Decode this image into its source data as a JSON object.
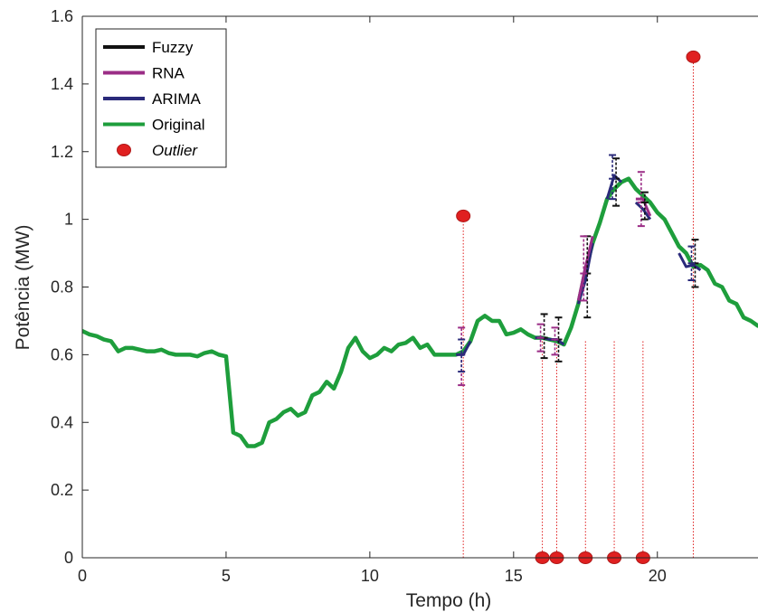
{
  "chart_data": {
    "type": "line",
    "xlabel": "Tempo (h)",
    "ylabel": "Potência (MW)",
    "xlim": [
      0,
      23.5
    ],
    "ylim": [
      0,
      1.6
    ],
    "xticks": [
      0,
      5,
      10,
      15,
      20
    ],
    "yticks": [
      0,
      0.2,
      0.4,
      0.6,
      0.8,
      1,
      1.2,
      1.4,
      1.6
    ],
    "ytick_labels": [
      "0",
      "0.2",
      "0.4",
      "0.6",
      "0.8",
      "1",
      "1.2",
      "1.4",
      "1.6"
    ],
    "grid": false,
    "legend_position": "top-left",
    "legend": [
      {
        "label": "Fuzzy",
        "color": "#111111",
        "kind": "line"
      },
      {
        "label": "RNA",
        "color": "#9b2d86",
        "kind": "line"
      },
      {
        "label": "ARIMA",
        "color": "#2a2a7a",
        "kind": "line"
      },
      {
        "label": "Original",
        "color": "#1e9e3c",
        "kind": "line"
      },
      {
        "label": "Outlier",
        "color": "#e02020",
        "kind": "marker"
      }
    ],
    "series": [
      {
        "name": "Original",
        "color": "#1e9e3c",
        "x": [
          0,
          0.25,
          0.5,
          0.75,
          1,
          1.25,
          1.5,
          1.75,
          2,
          2.25,
          2.5,
          2.75,
          3,
          3.25,
          3.5,
          3.75,
          4,
          4.25,
          4.5,
          4.75,
          5,
          5.25,
          5.5,
          5.75,
          6,
          6.25,
          6.5,
          6.75,
          7,
          7.25,
          7.5,
          7.75,
          8,
          8.25,
          8.5,
          8.75,
          9,
          9.25,
          9.5,
          9.75,
          10,
          10.25,
          10.5,
          10.75,
          11,
          11.25,
          11.5,
          11.75,
          12,
          12.25,
          12.5,
          12.75,
          13,
          13.25,
          13.5,
          13.75,
          14,
          14.25,
          14.5,
          14.75,
          15,
          15.25,
          15.5,
          15.75,
          16,
          16.25,
          16.5,
          16.75,
          17,
          17.25,
          17.5,
          17.75,
          18,
          18.25,
          18.5,
          18.75,
          19,
          19.25,
          19.5,
          19.75,
          20,
          20.25,
          20.5,
          20.75,
          21,
          21.25,
          21.5,
          21.75,
          22,
          22.25,
          22.5,
          22.75,
          23,
          23.25,
          23.5
        ],
        "y": [
          0.67,
          0.66,
          0.655,
          0.645,
          0.64,
          0.61,
          0.62,
          0.62,
          0.615,
          0.61,
          0.61,
          0.615,
          0.605,
          0.6,
          0.6,
          0.6,
          0.595,
          0.605,
          0.61,
          0.6,
          0.595,
          0.37,
          0.36,
          0.33,
          0.33,
          0.34,
          0.4,
          0.41,
          0.43,
          0.44,
          0.42,
          0.43,
          0.48,
          0.49,
          0.52,
          0.5,
          0.55,
          0.62,
          0.65,
          0.61,
          0.59,
          0.6,
          0.62,
          0.61,
          0.63,
          0.635,
          0.65,
          0.62,
          0.63,
          0.6,
          0.6,
          0.6,
          0.6,
          0.61,
          0.64,
          0.7,
          0.715,
          0.7,
          0.7,
          0.66,
          0.665,
          0.675,
          0.66,
          0.65,
          0.65,
          0.645,
          0.64,
          0.63,
          0.68,
          0.75,
          0.85,
          0.93,
          0.99,
          1.06,
          1.09,
          1.11,
          1.12,
          1.09,
          1.07,
          1.05,
          1.02,
          1.0,
          0.96,
          0.92,
          0.9,
          0.86,
          0.865,
          0.85,
          0.81,
          0.8,
          0.76,
          0.75,
          0.71,
          0.7,
          0.685
        ]
      },
      {
        "name": "ARIMA",
        "color": "#2a2a7a",
        "segments": [
          [
            [
              13.0,
              0.6
            ],
            [
              13.25,
              0.6
            ],
            [
              13.5,
              0.64
            ]
          ],
          [
            [
              15.75,
              0.65
            ],
            [
              16.0,
              0.65
            ],
            [
              16.25,
              0.645
            ],
            [
              16.5,
              0.645
            ],
            [
              16.75,
              0.63
            ]
          ],
          [
            [
              17.25,
              0.75
            ],
            [
              17.5,
              0.82
            ],
            [
              17.75,
              0.93
            ]
          ],
          [
            [
              18.25,
              1.06
            ],
            [
              18.5,
              1.13
            ],
            [
              18.75,
              1.11
            ]
          ],
          [
            [
              19.25,
              1.05
            ],
            [
              19.5,
              1.03
            ],
            [
              19.75,
              1.0
            ]
          ],
          [
            [
              20.75,
              0.9
            ],
            [
              21.0,
              0.86
            ],
            [
              21.25,
              0.865
            ],
            [
              21.5,
              0.85
            ]
          ]
        ]
      },
      {
        "name": "RNA",
        "color": "#9b2d86",
        "segments": [
          [
            [
              17.25,
              0.76
            ],
            [
              17.5,
              0.86
            ],
            [
              17.75,
              0.95
            ]
          ],
          [
            [
              19.25,
              1.06
            ],
            [
              19.5,
              1.06
            ],
            [
              19.75,
              1.01
            ]
          ]
        ]
      }
    ],
    "error_bars": [
      {
        "x": 13.25,
        "center": 0.6,
        "lo": 0.51,
        "hi": 0.68,
        "color": "#9b2d86"
      },
      {
        "x": 13.25,
        "center": 0.6,
        "lo": 0.55,
        "hi": 0.645,
        "color": "#2a2a7a"
      },
      {
        "x": 16.0,
        "center": 0.65,
        "lo": 0.59,
        "hi": 0.72,
        "color": "#111111"
      },
      {
        "x": 16.0,
        "center": 0.65,
        "lo": 0.61,
        "hi": 0.69,
        "color": "#9b2d86"
      },
      {
        "x": 16.5,
        "center": 0.645,
        "lo": 0.58,
        "hi": 0.71,
        "color": "#111111"
      },
      {
        "x": 16.5,
        "center": 0.645,
        "lo": 0.6,
        "hi": 0.68,
        "color": "#9b2d86"
      },
      {
        "x": 17.5,
        "center": 0.84,
        "lo": 0.71,
        "hi": 0.95,
        "color": "#111111"
      },
      {
        "x": 17.5,
        "center": 0.84,
        "lo": 0.76,
        "hi": 0.95,
        "color": "#9b2d86"
      },
      {
        "x": 18.5,
        "center": 1.12,
        "lo": 1.04,
        "hi": 1.18,
        "color": "#111111"
      },
      {
        "x": 18.5,
        "center": 1.12,
        "lo": 1.06,
        "hi": 1.19,
        "color": "#2a2a7a"
      },
      {
        "x": 19.5,
        "center": 1.05,
        "lo": 0.98,
        "hi": 1.14,
        "color": "#9b2d86"
      },
      {
        "x": 19.5,
        "center": 1.05,
        "lo": 1.0,
        "hi": 1.08,
        "color": "#111111"
      },
      {
        "x": 21.25,
        "center": 0.87,
        "lo": 0.8,
        "hi": 0.94,
        "color": "#111111"
      },
      {
        "x": 21.25,
        "center": 0.87,
        "lo": 0.82,
        "hi": 0.92,
        "color": "#2a2a7a"
      }
    ],
    "outliers": [
      {
        "x": 13.25,
        "y": 1.01
      },
      {
        "x": 16.0,
        "y": 0
      },
      {
        "x": 16.5,
        "y": 0
      },
      {
        "x": 17.5,
        "y": 0
      },
      {
        "x": 18.5,
        "y": 0
      },
      {
        "x": 19.5,
        "y": 0
      },
      {
        "x": 21.25,
        "y": 1.48
      }
    ]
  }
}
